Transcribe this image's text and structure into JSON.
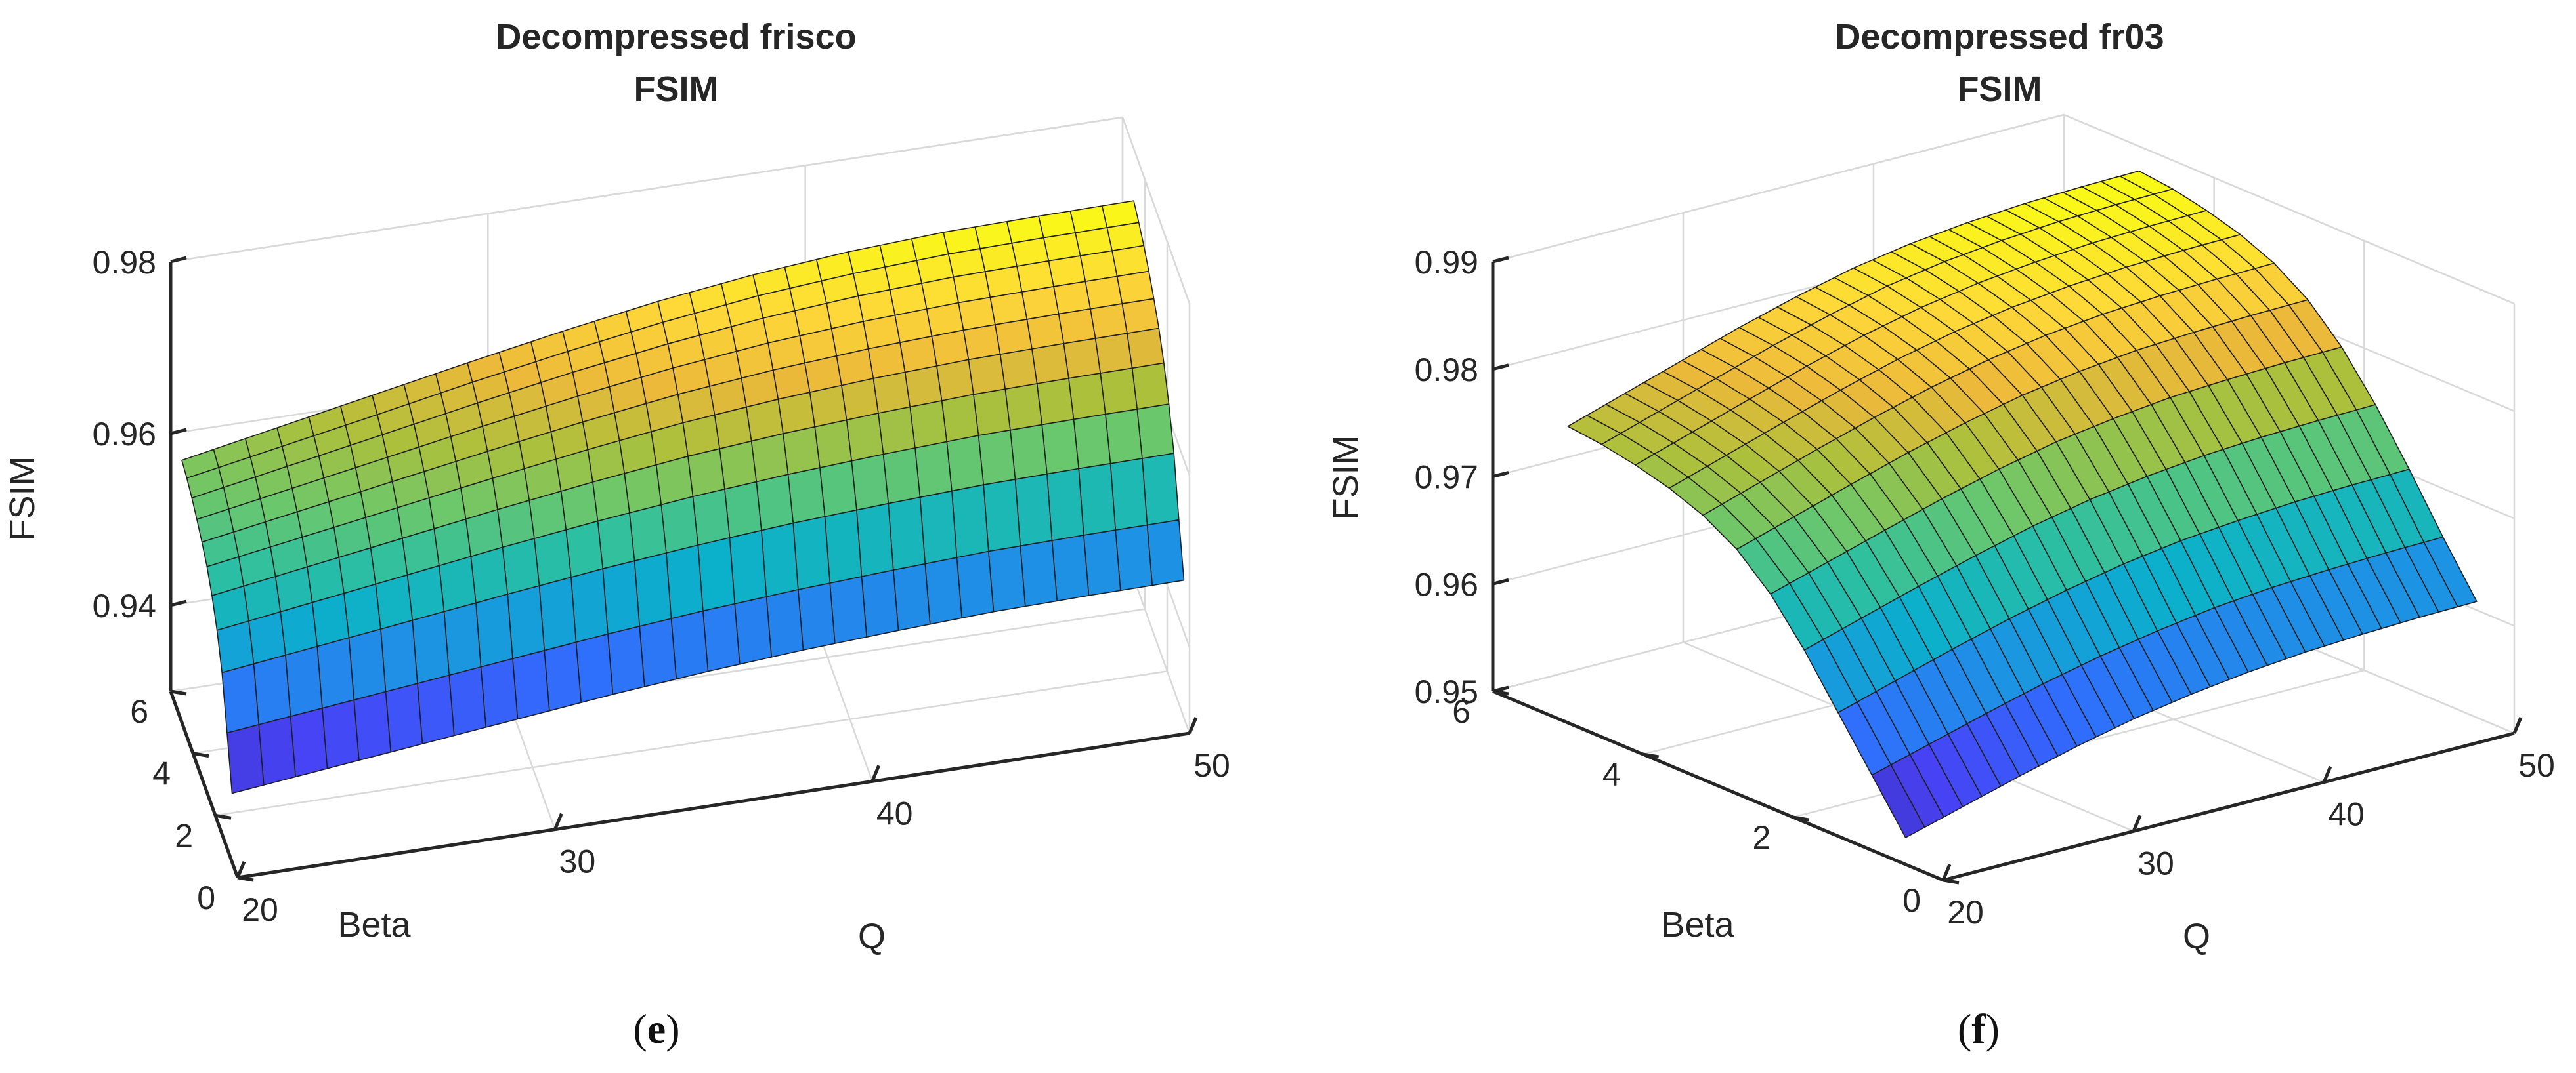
{
  "colormap": [
    "#3e26a8",
    "#4743f5",
    "#2f6ffc",
    "#1d93e3",
    "#0bb0cb",
    "#2dbfa1",
    "#6bc76c",
    "#acc03c",
    "#ecb93a",
    "#fed839",
    "#f9fb15"
  ],
  "chart_data": [
    {
      "type": "surface3d",
      "title": "Decompressed frisco",
      "subtitle": "FSIM",
      "xlabel": "Q",
      "ylabel": "Beta",
      "zlabel": "FSIM",
      "xlim": [
        20,
        50
      ],
      "ylim": [
        0,
        6
      ],
      "zlim": [
        0.93,
        0.98
      ],
      "x_ticks": [
        20,
        30,
        40,
        50
      ],
      "x_tick_labels": [
        "20",
        "30",
        "40",
        "50"
      ],
      "y_ticks": [
        0,
        2,
        4,
        6
      ],
      "y_tick_labels": [
        "0",
        "2",
        "4",
        "6"
      ],
      "z_ticks": [
        0.94,
        0.96,
        0.98
      ],
      "z_tick_labels": [
        "0.94",
        "0.96",
        "0.98"
      ],
      "q_range": [
        20,
        50
      ],
      "q_steps": 30,
      "beta_range": [
        0.5,
        5.0
      ],
      "beta_steps": 10,
      "q_anchors": [
        20,
        23,
        26,
        29,
        32,
        35,
        38,
        41,
        44,
        47,
        50
      ],
      "beta_anchors": [
        0.5,
        1.0,
        1.5,
        2.0,
        2.5,
        3.0,
        3.5,
        4.0,
        4.5,
        5.0
      ],
      "z_anchor_rows": [
        [
          0.938,
          0.9392,
          0.9404,
          0.9416,
          0.9428,
          0.9438,
          0.9446,
          0.9452,
          0.9457,
          0.9459,
          0.946
        ],
        [
          0.944,
          0.9452,
          0.9464,
          0.9476,
          0.9488,
          0.9498,
          0.9506,
          0.9512,
          0.9517,
          0.9519,
          0.952
        ],
        [
          0.95,
          0.9514,
          0.9528,
          0.9542,
          0.9555,
          0.9566,
          0.9575,
          0.9581,
          0.9586,
          0.9588,
          0.9589
        ],
        [
          0.953,
          0.9546,
          0.9562,
          0.9578,
          0.9592,
          0.9604,
          0.9613,
          0.962,
          0.9625,
          0.9627,
          0.9628
        ],
        [
          0.9555,
          0.9572,
          0.9589,
          0.9606,
          0.9622,
          0.9636,
          0.9646,
          0.9653,
          0.9658,
          0.966,
          0.9661
        ],
        [
          0.957,
          0.9588,
          0.9606,
          0.9624,
          0.9641,
          0.9656,
          0.9667,
          0.9675,
          0.968,
          0.9682,
          0.9683
        ],
        [
          0.9582,
          0.9601,
          0.962,
          0.9639,
          0.9657,
          0.9673,
          0.9685,
          0.9693,
          0.9698,
          0.97,
          0.9701
        ],
        [
          0.9592,
          0.9612,
          0.9632,
          0.9652,
          0.9671,
          0.9687,
          0.97,
          0.9709,
          0.9714,
          0.9716,
          0.9717
        ],
        [
          0.96,
          0.962,
          0.964,
          0.9661,
          0.968,
          0.9697,
          0.9711,
          0.972,
          0.9726,
          0.9728,
          0.9729
        ],
        [
          0.9605,
          0.9626,
          0.9647,
          0.9668,
          0.9688,
          0.9706,
          0.972,
          0.973,
          0.9736,
          0.9738,
          0.9739
        ]
      ]
    },
    {
      "type": "surface3d",
      "title": "Decompressed fr03",
      "subtitle": "FSIM",
      "xlabel": "Q",
      "ylabel": "Beta",
      "zlabel": "FSIM",
      "xlim": [
        20,
        50
      ],
      "ylim": [
        0,
        6
      ],
      "zlim": [
        0.95,
        0.99
      ],
      "x_ticks": [
        20,
        30,
        40,
        50
      ],
      "x_tick_labels": [
        "20",
        "30",
        "40",
        "50"
      ],
      "y_ticks": [
        0,
        2,
        4,
        6
      ],
      "y_tick_labels": [
        "0",
        "2",
        "4",
        "6"
      ],
      "z_ticks": [
        0.95,
        0.96,
        0.97,
        0.98,
        0.99
      ],
      "z_tick_labels": [
        "0.95",
        "0.96",
        "0.97",
        "0.98",
        "0.99"
      ],
      "q_range": [
        20,
        50
      ],
      "q_steps": 30,
      "beta_range": [
        0.5,
        5.0
      ],
      "beta_steps": 10,
      "q_anchors": [
        20,
        23,
        26,
        29,
        32,
        35,
        38,
        41,
        44,
        47,
        50
      ],
      "beta_anchors": [
        0.5,
        1.0,
        1.5,
        2.0,
        2.5,
        3.0,
        3.5,
        4.0,
        4.5,
        5.0
      ],
      "z_anchor_rows": [
        [
          0.9525,
          0.954,
          0.9555,
          0.9569,
          0.9581,
          0.959,
          0.9597,
          0.9602,
          0.9605,
          0.9607,
          0.9608
        ],
        [
          0.9575,
          0.959,
          0.9605,
          0.9619,
          0.9631,
          0.9641,
          0.9649,
          0.9654,
          0.9657,
          0.9659,
          0.966
        ],
        [
          0.9625,
          0.9641,
          0.9657,
          0.9672,
          0.9685,
          0.9696,
          0.9704,
          0.9709,
          0.9713,
          0.9715,
          0.9716
        ],
        [
          0.9675,
          0.9691,
          0.9707,
          0.9722,
          0.9736,
          0.9747,
          0.9755,
          0.9761,
          0.9764,
          0.9766,
          0.9767
        ],
        [
          0.9715,
          0.9731,
          0.9747,
          0.9763,
          0.9777,
          0.9789,
          0.9797,
          0.9803,
          0.9806,
          0.9808,
          0.9809
        ],
        [
          0.974,
          0.9757,
          0.9774,
          0.979,
          0.9804,
          0.9816,
          0.9825,
          0.9831,
          0.9834,
          0.9836,
          0.9837
        ],
        [
          0.9755,
          0.9772,
          0.9789,
          0.9805,
          0.982,
          0.9832,
          0.9841,
          0.9847,
          0.9851,
          0.9853,
          0.9854
        ],
        [
          0.9765,
          0.9782,
          0.9799,
          0.9816,
          0.9831,
          0.9843,
          0.9852,
          0.9858,
          0.9862,
          0.9864,
          0.9865
        ],
        [
          0.9772,
          0.9789,
          0.9806,
          0.9823,
          0.9838,
          0.9851,
          0.986,
          0.9866,
          0.987,
          0.9872,
          0.9873
        ],
        [
          0.9776,
          0.9793,
          0.981,
          0.9827,
          0.9842,
          0.9855,
          0.9864,
          0.987,
          0.9874,
          0.9876,
          0.9877
        ]
      ]
    }
  ],
  "captions": [
    {
      "open": "(",
      "letter": "e",
      "close": ")"
    },
    {
      "open": "(",
      "letter": "f",
      "close": ")"
    }
  ]
}
